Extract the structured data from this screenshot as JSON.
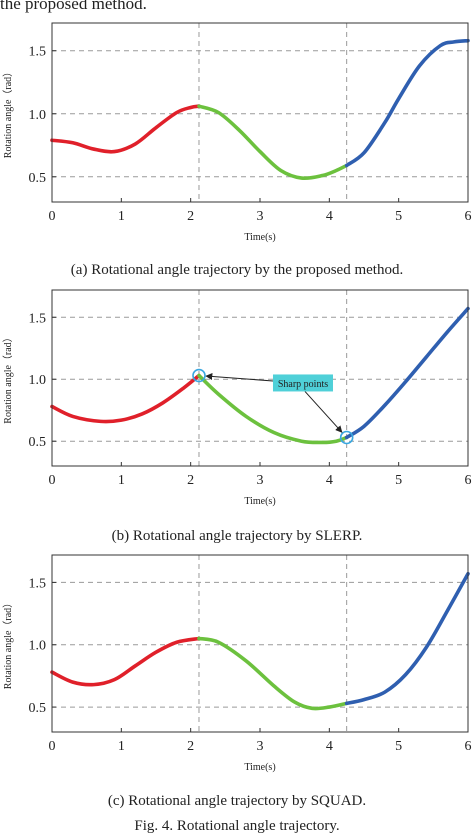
{
  "header_fragment": "the proposed method.",
  "figure_caption": "Fig. 4. Rotational angle trajectory.",
  "colors": {
    "segment1": "#e0202a",
    "segment2": "#6cc13e",
    "segment3": "#2f5fb0",
    "grid": "#9a9a9a",
    "callout_bg": "#4fd0d8",
    "marker": "#3aa8e0"
  },
  "chart_data": [
    {
      "type": "line",
      "caption": "(a) Rotational angle trajectory by the proposed method.",
      "xlabel": "Time(s)",
      "ylabel": "Rotation angle（rad）",
      "xlim": [
        0,
        6
      ],
      "ylim": [
        0.3,
        1.72
      ],
      "xticks": [
        "0",
        "1",
        "2",
        "3",
        "4",
        "5",
        "6"
      ],
      "yticks": [
        {
          "value": 0.5,
          "label": "0.5"
        },
        {
          "value": 1.0,
          "label": "1.0"
        },
        {
          "value": 1.5,
          "label": "1.5"
        }
      ],
      "grid": true,
      "vlines": [
        2.12,
        4.25
      ],
      "series": [
        {
          "color_key": "segment1",
          "x": [
            0,
            0.3,
            0.6,
            0.9,
            1.2,
            1.5,
            1.8,
            2.0,
            2.12
          ],
          "y": [
            0.79,
            0.77,
            0.72,
            0.7,
            0.76,
            0.89,
            1.01,
            1.05,
            1.06
          ]
        },
        {
          "color_key": "segment2",
          "x": [
            2.12,
            2.4,
            2.7,
            3.0,
            3.3,
            3.6,
            3.9,
            4.1,
            4.25
          ],
          "y": [
            1.06,
            1.01,
            0.87,
            0.7,
            0.55,
            0.49,
            0.51,
            0.55,
            0.59
          ]
        },
        {
          "color_key": "segment3",
          "x": [
            4.25,
            4.5,
            4.8,
            5.0,
            5.3,
            5.6,
            5.8,
            6.0
          ],
          "y": [
            0.59,
            0.69,
            0.93,
            1.12,
            1.38,
            1.54,
            1.57,
            1.58
          ]
        }
      ]
    },
    {
      "type": "line",
      "caption": "(b) Rotational angle trajectory by SLERP.",
      "xlabel": "Time(s)",
      "ylabel": "Rotation angle（rad）",
      "xlim": [
        0,
        6
      ],
      "ylim": [
        0.3,
        1.72
      ],
      "xticks": [
        "0",
        "1",
        "2",
        "3",
        "4",
        "5",
        "6"
      ],
      "yticks": [
        {
          "value": 0.5,
          "label": "0.5"
        },
        {
          "value": 1.0,
          "label": "1.0"
        },
        {
          "value": 1.5,
          "label": "1.5"
        }
      ],
      "grid": true,
      "vlines": [
        2.12,
        4.25
      ],
      "series": [
        {
          "color_key": "segment1",
          "x": [
            0,
            0.3,
            0.7,
            1.0,
            1.3,
            1.6,
            1.9,
            2.12
          ],
          "y": [
            0.78,
            0.7,
            0.66,
            0.67,
            0.72,
            0.81,
            0.93,
            1.03
          ]
        },
        {
          "color_key": "segment2",
          "x": [
            2.12,
            2.4,
            2.8,
            3.2,
            3.6,
            3.9,
            4.1,
            4.25
          ],
          "y": [
            1.03,
            0.88,
            0.7,
            0.57,
            0.5,
            0.49,
            0.5,
            0.53
          ]
        },
        {
          "color_key": "segment3",
          "x": [
            4.25,
            4.5,
            4.8,
            5.1,
            5.4,
            5.7,
            6.0
          ],
          "y": [
            0.53,
            0.62,
            0.79,
            0.98,
            1.18,
            1.38,
            1.57
          ]
        }
      ],
      "markers": [
        {
          "x": 2.12,
          "y": 1.03
        },
        {
          "x": 4.25,
          "y": 0.53
        }
      ],
      "annotation": {
        "text": "Sharp points",
        "x": 3.62,
        "y": 0.97
      }
    },
    {
      "type": "line",
      "caption": "(c) Rotational angle trajectory by SQUAD.",
      "xlabel": "Time(s)",
      "ylabel": "Rotation angle（rad）",
      "xlim": [
        0,
        6
      ],
      "ylim": [
        0.3,
        1.72
      ],
      "xticks": [
        "0",
        "1",
        "2",
        "3",
        "4",
        "5",
        "6"
      ],
      "yticks": [
        {
          "value": 0.5,
          "label": "0.5"
        },
        {
          "value": 1.0,
          "label": "1.0"
        },
        {
          "value": 1.5,
          "label": "1.5"
        }
      ],
      "grid": true,
      "vlines": [
        2.12,
        4.25
      ],
      "series": [
        {
          "color_key": "segment1",
          "x": [
            0,
            0.3,
            0.6,
            0.9,
            1.2,
            1.5,
            1.8,
            2.12
          ],
          "y": [
            0.78,
            0.7,
            0.68,
            0.72,
            0.83,
            0.94,
            1.02,
            1.05
          ]
        },
        {
          "color_key": "segment2",
          "x": [
            2.12,
            2.4,
            2.8,
            3.2,
            3.5,
            3.75,
            4.0,
            4.25
          ],
          "y": [
            1.05,
            1.02,
            0.87,
            0.67,
            0.54,
            0.49,
            0.5,
            0.53
          ]
        },
        {
          "color_key": "segment3",
          "x": [
            4.25,
            4.5,
            4.8,
            5.1,
            5.4,
            5.7,
            6.0
          ],
          "y": [
            0.53,
            0.56,
            0.62,
            0.76,
            0.98,
            1.27,
            1.57
          ]
        }
      ]
    }
  ]
}
